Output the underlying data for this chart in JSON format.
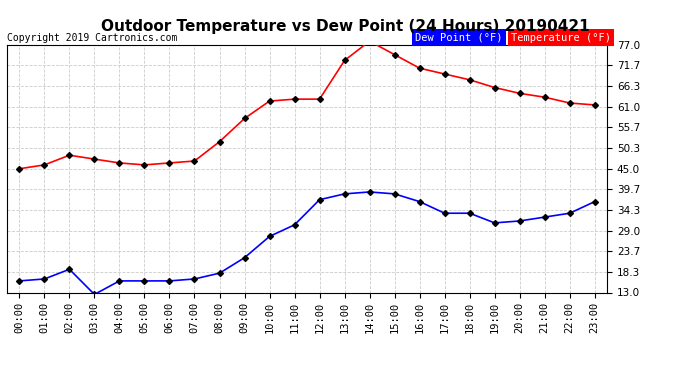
{
  "title": "Outdoor Temperature vs Dew Point (24 Hours) 20190421",
  "copyright": "Copyright 2019 Cartronics.com",
  "hours": [
    "00:00",
    "01:00",
    "02:00",
    "03:00",
    "04:00",
    "05:00",
    "06:00",
    "07:00",
    "08:00",
    "09:00",
    "10:00",
    "11:00",
    "12:00",
    "13:00",
    "14:00",
    "15:00",
    "16:00",
    "17:00",
    "18:00",
    "19:00",
    "20:00",
    "21:00",
    "22:00",
    "23:00"
  ],
  "temperature": [
    45.0,
    46.0,
    48.5,
    47.5,
    46.5,
    46.0,
    46.5,
    47.0,
    52.0,
    58.0,
    62.5,
    63.0,
    63.0,
    73.0,
    78.0,
    74.5,
    71.0,
    69.5,
    68.0,
    66.0,
    64.5,
    63.5,
    62.0,
    61.5
  ],
  "dew_point": [
    16.0,
    16.5,
    19.0,
    12.5,
    16.0,
    16.0,
    16.0,
    16.5,
    18.0,
    22.0,
    27.5,
    30.5,
    37.0,
    38.5,
    39.0,
    38.5,
    36.5,
    33.5,
    33.5,
    31.0,
    31.5,
    32.5,
    33.5,
    36.5
  ],
  "temp_color": "#ff0000",
  "dew_color": "#0000ff",
  "marker": "D",
  "marker_size": 3,
  "line_width": 1.2,
  "ylim_min": 13.0,
  "ylim_max": 77.0,
  "yticks": [
    13.0,
    18.3,
    23.7,
    29.0,
    34.3,
    39.7,
    45.0,
    50.3,
    55.7,
    61.0,
    66.3,
    71.7,
    77.0
  ],
  "grid_color": "#cccccc",
  "background_color": "#ffffff",
  "legend_dew_bg": "#0000ff",
  "legend_temp_bg": "#ff0000",
  "legend_text_color": "#ffffff",
  "title_fontsize": 11,
  "copyright_fontsize": 7,
  "tick_fontsize": 7.5
}
